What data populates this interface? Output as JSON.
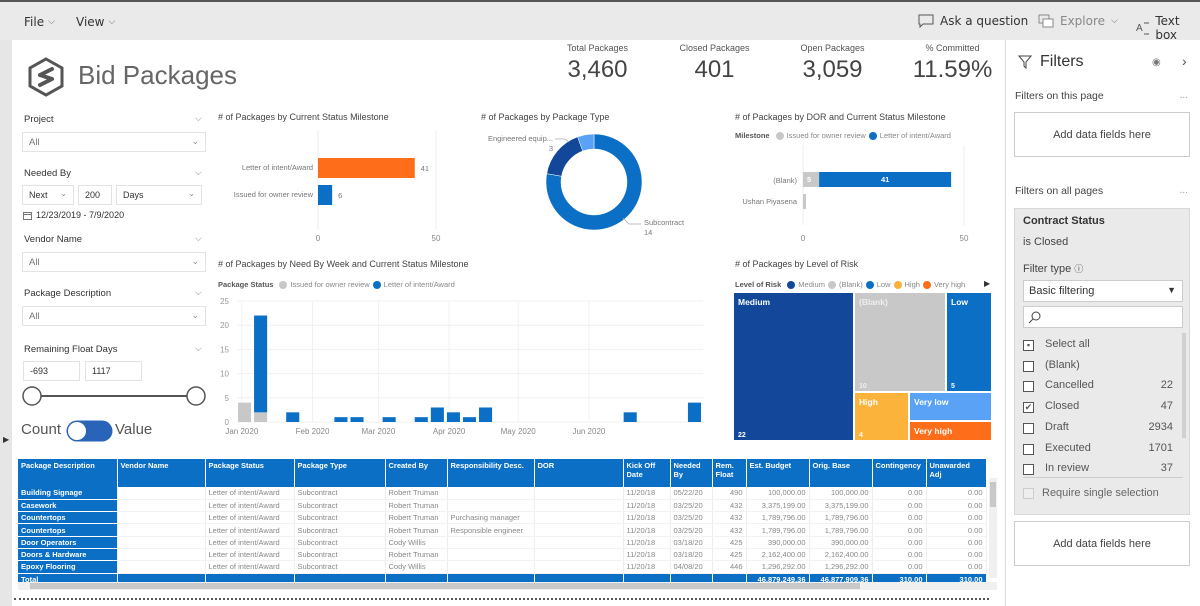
{
  "topbar": {
    "menus": [
      {
        "label": "File"
      },
      {
        "label": "View"
      }
    ],
    "tools": [
      {
        "label": "Ask a question",
        "icon": "chat-bubble-icon"
      },
      {
        "label": "Explore",
        "icon": "explore-icon"
      },
      {
        "label": "Text box",
        "icon": "text-box-icon"
      }
    ]
  },
  "report": {
    "title": "Bid Packages",
    "kpis": [
      {
        "label": "Total Packages",
        "value": "3,460"
      },
      {
        "label": "Closed Packages",
        "value": "401"
      },
      {
        "label": "Open Packages",
        "value": "3,059"
      },
      {
        "label": "% Committed",
        "value": "11.59%"
      }
    ]
  },
  "slicers": {
    "project": {
      "label": "Project",
      "value": "All"
    },
    "needed_by": {
      "label": "Needed By",
      "mode": "Next",
      "amount": "200",
      "unit": "Days",
      "range": "12/23/2019 - 7/9/2020"
    },
    "vendor": {
      "label": "Vendor Name",
      "value": "All"
    },
    "package_desc": {
      "label": "Package Description",
      "value": "All"
    },
    "float_days": {
      "label": "Remaining Float Days",
      "min": "-693",
      "max": "1117"
    },
    "toggle": {
      "left": "Count",
      "right": "Value",
      "state": "Value"
    }
  },
  "chart_data": [
    {
      "type": "bar",
      "orientation": "horizontal",
      "title": "# of Packages by Current Status Milestone",
      "categories": [
        "Letter of intent/Award",
        "Issued for owner review"
      ],
      "values": [
        41,
        6
      ],
      "colors": [
        "#fe6e1a",
        "#0a6fc5"
      ],
      "xlim": [
        0,
        50
      ],
      "xticks": [
        "0",
        "50"
      ],
      "data_labels": [
        "41",
        "6"
      ]
    },
    {
      "type": "pie",
      "donut": true,
      "title": "# of Packages by Package Type",
      "slices": [
        {
          "label": "Subcontract",
          "value": 14,
          "color": "#0a6fc5"
        },
        {
          "label": "Engineered equip...",
          "value": 3,
          "color": "#12479a"
        },
        {
          "label": "",
          "value": 1,
          "color": "#5aa2f5"
        }
      ],
      "shown_labels": [
        {
          "label": "Engineered equip...",
          "value": "3"
        },
        {
          "label": "Subcontract",
          "value": "14"
        }
      ]
    },
    {
      "type": "bar",
      "orientation": "horizontal",
      "stacked": true,
      "title": "# of Packages by DOR and Current Status Milestone",
      "legend_title": "Milestone",
      "legend": [
        {
          "name": "Issued for owner review",
          "color": "#c8c8c8"
        },
        {
          "name": "Letter of intent/Award",
          "color": "#0a6fc5"
        }
      ],
      "categories": [
        "(Blank)",
        "Ushan Piyasena"
      ],
      "series": [
        {
          "name": "Issued for owner review",
          "values": [
            5,
            1
          ]
        },
        {
          "name": "Letter of intent/Award",
          "values": [
            41,
            0
          ]
        }
      ],
      "xlim": [
        0,
        50
      ],
      "xticks": [
        "0",
        "50"
      ]
    },
    {
      "type": "bar",
      "stacked": true,
      "title": "# of Packages by Need By Week and Current Status Milestone",
      "legend_title": "Package Status",
      "legend": [
        {
          "name": "Issued for owner review",
          "color": "#c8c8c8"
        },
        {
          "name": "Letter of intent/Award",
          "color": "#0a6fc5"
        }
      ],
      "week_index": [
        0,
        1,
        3,
        6,
        7,
        9,
        11,
        12,
        13,
        14,
        15,
        24,
        28
      ],
      "series": [
        {
          "name": "Issued for owner review",
          "values": [
            4,
            2,
            0,
            0,
            0,
            0,
            0,
            0,
            0,
            0,
            0,
            0,
            0
          ]
        },
        {
          "name": "Letter of intent/Award",
          "values": [
            0,
            20,
            2,
            1,
            1,
            1,
            1,
            3,
            2,
            1,
            3,
            2,
            4
          ]
        }
      ],
      "ylim": [
        0,
        25
      ],
      "yticks": [
        "0",
        "5",
        "10",
        "15",
        "20",
        "25"
      ],
      "xticks": [
        {
          "label": "Jan 2020",
          "week": 0.3
        },
        {
          "label": "Feb 2020",
          "week": 4.7
        },
        {
          "label": "Mar 2020",
          "week": 8.8
        },
        {
          "label": "Apr 2020",
          "week": 13.2
        },
        {
          "label": "May 2020",
          "week": 17.5
        },
        {
          "label": "Jun 2020",
          "week": 21.9
        }
      ],
      "weeks_total": 29,
      "grid": true
    },
    {
      "type": "treemap",
      "title": "# of Packages by Level of Risk",
      "legend_title": "Level of Risk",
      "legend": [
        {
          "name": "Medium",
          "color": "#12479a"
        },
        {
          "name": "(Blank)",
          "color": "#c8c8c8"
        },
        {
          "name": "Low",
          "color": "#0a6fc5"
        },
        {
          "name": "High",
          "color": "#fbb33b"
        },
        {
          "name": "Very high",
          "color": "#fe6e1a"
        }
      ],
      "nodes": [
        {
          "label": "Medium",
          "value": 22,
          "value_label": "22",
          "color": "#12479a"
        },
        {
          "label": "(Blank)",
          "value": 10,
          "value_label": "10",
          "color": "#c8c8c8"
        },
        {
          "label": "Low",
          "value": 5,
          "value_label": "5",
          "color": "#0a6fc5"
        },
        {
          "label": "High",
          "value": 4,
          "value_label": "4",
          "color": "#fbb33b"
        },
        {
          "label": "Very low",
          "value_label": "",
          "color": "#5aa2f5"
        },
        {
          "label": "Very high",
          "value_label": "",
          "color": "#fe6e1a"
        }
      ]
    }
  ],
  "table": {
    "columns": [
      "Package Description",
      "Vendor Name",
      "Package Status",
      "Package Type",
      "Created By",
      "Responsibility Desc.",
      "DOR",
      "Kick Off Date",
      "Needed By",
      "Rem. Float",
      "Est. Budget",
      "Orig. Base",
      "Contingency",
      "Unawarded Adj"
    ],
    "rows": [
      [
        "Building Signage",
        "",
        "Letter of intent/Award",
        "Subcontract",
        "Robert Truman",
        "",
        "",
        "11/20/18",
        "05/22/20",
        "490",
        "100,000.00",
        "100,000.00",
        "0.00",
        "0.00"
      ],
      [
        "Casework",
        "",
        "Letter of intent/Award",
        "Subcontract",
        "Robert Truman",
        "",
        "",
        "11/20/18",
        "03/25/20",
        "432",
        "3,375,199.00",
        "3,375,199.00",
        "0.00",
        "0.00"
      ],
      [
        "Countertops",
        "",
        "Letter of intent/Award",
        "Subcontract",
        "Robert Truman",
        "Purchasing manager",
        "",
        "11/20/18",
        "03/25/20",
        "432",
        "1,789,796.00",
        "1,789,796.00",
        "0.00",
        "0.00"
      ],
      [
        "Countertops",
        "",
        "Letter of intent/Award",
        "Subcontract",
        "Robert Truman",
        "Responsible engineer",
        "",
        "11/20/18",
        "03/25/20",
        "432",
        "1,789,796.00",
        "1,789,796.00",
        "0.00",
        "0.00"
      ],
      [
        "Door Operators",
        "",
        "Letter of intent/Award",
        "Subcontract",
        "Cody Willis",
        "",
        "",
        "11/20/18",
        "03/18/20",
        "425",
        "390,000.00",
        "390,000.00",
        "0.00",
        "0.00"
      ],
      [
        "Doors & Hardware",
        "",
        "Letter of intent/Award",
        "Subcontract",
        "Robert Truman",
        "",
        "",
        "11/20/18",
        "03/18/20",
        "425",
        "2,162,400.00",
        "2,162,400.00",
        "0.00",
        "0.00"
      ],
      [
        "Epoxy Flooring",
        "",
        "Letter of intent/Award",
        "Subcontract",
        "Cody Willis",
        "",
        "",
        "11/20/18",
        "04/08/20",
        "446",
        "1,296,292.00",
        "1,296,292.00",
        "0.00",
        "0.00"
      ]
    ],
    "total": [
      "Total",
      "",
      "",
      "",
      "",
      "",
      "",
      "",
      "",
      "",
      "46,879,249.36",
      "46,877,909.36",
      "310.00",
      "310.00"
    ]
  },
  "filters": {
    "title": "Filters",
    "on_page_label": "Filters on this page",
    "add_fields": "Add data fields here",
    "on_all_label": "Filters on all pages",
    "more": "...",
    "card": {
      "field": "Contract Status",
      "summary": "is Closed",
      "filter_type_label": "Filter type",
      "filter_type": "Basic filtering",
      "items": [
        {
          "label": "Select all",
          "count": "",
          "state": "partial"
        },
        {
          "label": "(Blank)",
          "count": "",
          "state": "unchecked"
        },
        {
          "label": "Cancelled",
          "count": "22",
          "state": "unchecked"
        },
        {
          "label": "Closed",
          "count": "47",
          "state": "checked"
        },
        {
          "label": "Draft",
          "count": "2934",
          "state": "unchecked"
        },
        {
          "label": "Executed",
          "count": "1701",
          "state": "unchecked"
        },
        {
          "label": "In review",
          "count": "37",
          "state": "unchecked"
        }
      ],
      "require_single": "Require single selection"
    }
  }
}
